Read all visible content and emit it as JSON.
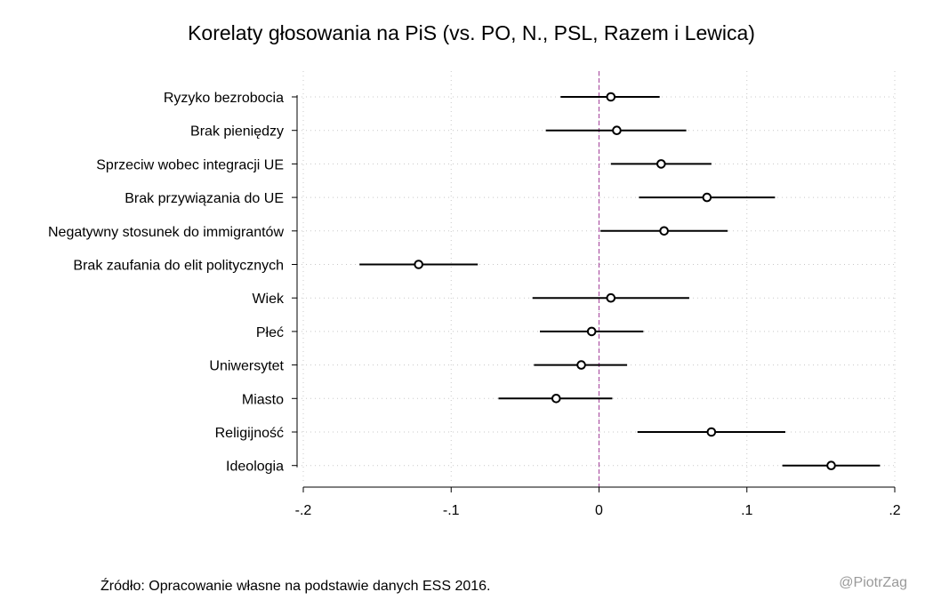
{
  "chart_data": {
    "type": "scatter",
    "subtype": "coefficient-plot",
    "title": "Korelaty głosowania na PiS (vs. PO, N., PSL, Razem i Lewica)",
    "xlabel": "",
    "ylabel": "",
    "xlim": [
      -0.2,
      0.2
    ],
    "xticks": [
      -0.2,
      -0.1,
      0,
      0.1,
      0.2
    ],
    "xtick_labels": [
      "-.2",
      "-.1",
      "0",
      ".1",
      ".2"
    ],
    "reference_line": {
      "x": 0,
      "color": "#b05ca8",
      "style": "dashed"
    },
    "grid": true,
    "marker_color": "#000000",
    "items": [
      {
        "label": "Ryzyko bezrobocia",
        "estimate": 0.008,
        "ci_low": -0.026,
        "ci_high": 0.041
      },
      {
        "label": "Brak pieniędzy",
        "estimate": 0.012,
        "ci_low": -0.036,
        "ci_high": 0.059
      },
      {
        "label": "Sprzeciw wobec integracji UE",
        "estimate": 0.042,
        "ci_low": 0.008,
        "ci_high": 0.076
      },
      {
        "label": "Brak przywiązania do UE",
        "estimate": 0.073,
        "ci_low": 0.027,
        "ci_high": 0.119
      },
      {
        "label": "Negatywny stosunek do immigrantów",
        "estimate": 0.044,
        "ci_low": 0.001,
        "ci_high": 0.087
      },
      {
        "label": "Brak zaufania do elit politycznych",
        "estimate": -0.122,
        "ci_low": -0.162,
        "ci_high": -0.082
      },
      {
        "label": "Wiek",
        "estimate": 0.008,
        "ci_low": -0.045,
        "ci_high": 0.061
      },
      {
        "label": "Płeć",
        "estimate": -0.005,
        "ci_low": -0.04,
        "ci_high": 0.03
      },
      {
        "label": "Uniwersytet",
        "estimate": -0.012,
        "ci_low": -0.044,
        "ci_high": 0.019
      },
      {
        "label": "Miasto",
        "estimate": -0.029,
        "ci_low": -0.068,
        "ci_high": 0.009
      },
      {
        "label": "Religijność",
        "estimate": 0.076,
        "ci_low": 0.026,
        "ci_high": 0.126
      },
      {
        "label": "Ideologia",
        "estimate": 0.157,
        "ci_low": 0.124,
        "ci_high": 0.19
      }
    ]
  },
  "footer": {
    "source": "Źródło: Opracowanie własne na podstawie danych ESS 2016.",
    "credit": "@PiotrZag"
  }
}
